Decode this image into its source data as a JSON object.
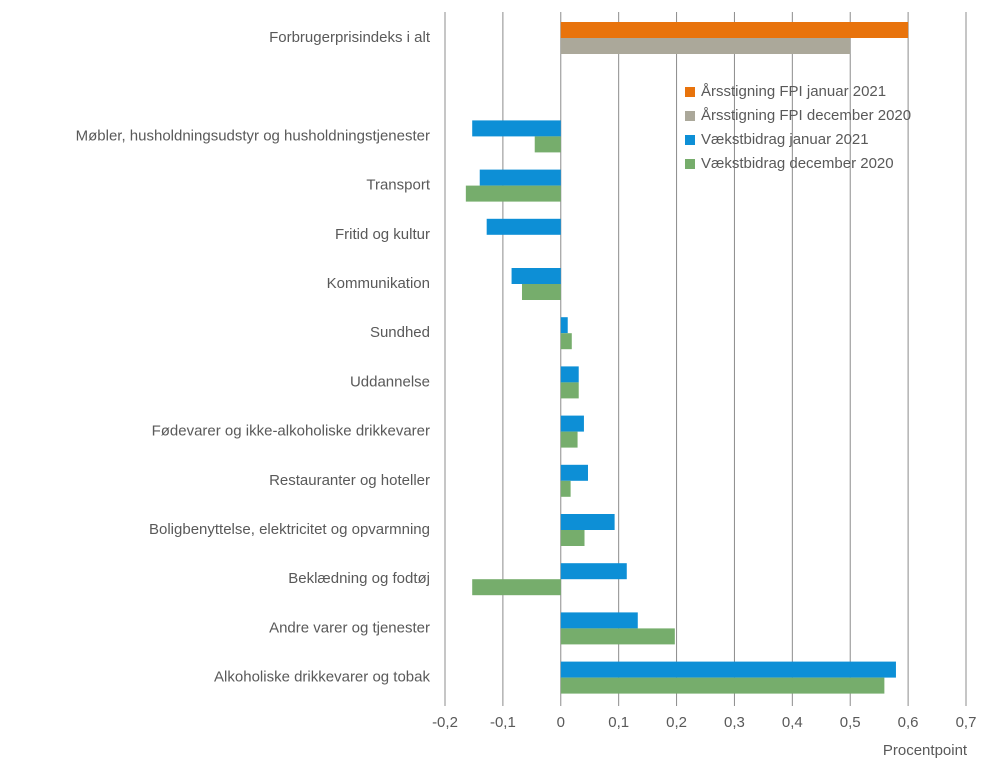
{
  "chart_data": {
    "type": "hbar",
    "x_label": "Procentpoint",
    "categories": [
      "Forbrugerprisindeks i alt",
      null,
      "Møbler, husholdningsudstyr og husholdningstjenester",
      "Transport",
      "Fritid og kultur",
      "Kommunikation",
      "Sundhed",
      "Uddannelse",
      "Fødevarer og ikke-alkoholiske drikkevarer",
      "Restauranter og hoteller",
      "Boligbenyttelse, elektricitet og opvarmning",
      "Beklædning og fodtøj",
      "Andre varer og tjenester",
      "Alkoholiske drikkevarer og tobak"
    ],
    "series": [
      {
        "name": "Årsstigning FPI januar 2021",
        "color": "#e8730c",
        "values": [
          0.6,
          null,
          null,
          null,
          null,
          null,
          null,
          null,
          null,
          null,
          null,
          null,
          null,
          null
        ]
      },
      {
        "name": "Årsstigning FPI december 2020",
        "color": "#aba89a",
        "values": [
          0.5,
          null,
          null,
          null,
          null,
          null,
          null,
          null,
          null,
          null,
          null,
          null,
          null,
          null
        ]
      },
      {
        "name": "Vækstbidrag januar 2021",
        "color": "#0d8fd6",
        "values": [
          null,
          null,
          -0.153,
          -0.14,
          -0.128,
          -0.085,
          0.012,
          0.031,
          0.04,
          0.047,
          0.093,
          0.114,
          0.133,
          0.579
        ]
      },
      {
        "name": "Vækstbidrag december 2020",
        "color": "#76ad6c",
        "values": [
          null,
          null,
          -0.045,
          -0.164,
          null,
          -0.067,
          0.019,
          0.031,
          0.029,
          0.017,
          0.041,
          -0.153,
          0.197,
          0.559
        ]
      }
    ],
    "xlim": [
      -0.2,
      0.7
    ],
    "xticks": [
      {
        "value": -0.2,
        "label": "-0,2"
      },
      {
        "value": -0.1,
        "label": "-0,1"
      },
      0,
      {
        "value": 0.1,
        "label": "0,1"
      },
      {
        "value": 0.2,
        "label": "0,2"
      },
      {
        "value": 0.3,
        "label": "0,3"
      },
      {
        "value": 0.4,
        "label": "0,4"
      },
      {
        "value": 0.5,
        "label": "0,5"
      },
      {
        "value": 0.6,
        "label": "0,6"
      },
      {
        "value": 0.7,
        "label": "0,7"
      }
    ],
    "grid": true,
    "legend": "upper right"
  }
}
